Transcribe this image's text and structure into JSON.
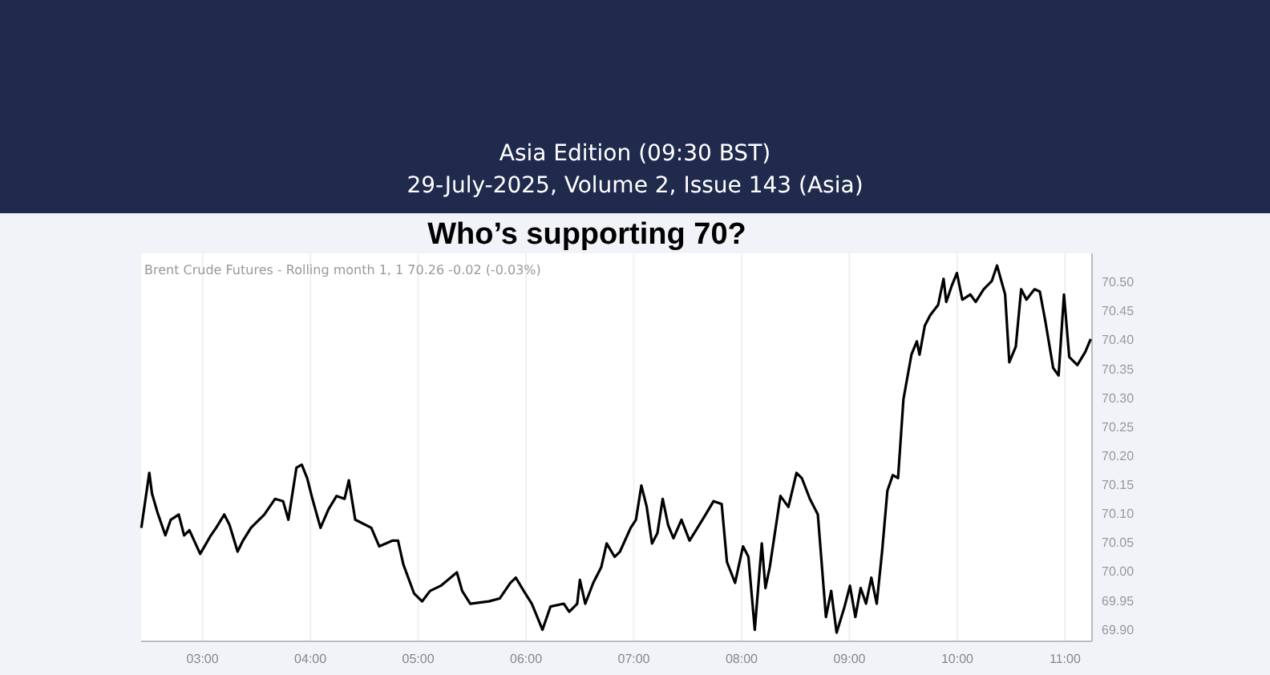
{
  "chart_data": {
    "type": "line",
    "title": "Who’s supporting 70?",
    "annotations": [
      "Asia Edition (09:30 BST)",
      "29-July-2025, Volume 2, Issue 143 (Asia)",
      "Brent Crude Futures - Rolling month 1, 1  70.26  -0.02 (-0.03%)"
    ],
    "series": [
      {
        "color": "#000000",
        "x": [
          2.432,
          2.506,
          2.531,
          2.581,
          2.655,
          2.705,
          2.779,
          2.829,
          2.878,
          2.978,
          3.077,
          3.126,
          3.201,
          3.25,
          3.325,
          3.375,
          3.449,
          3.573,
          3.672,
          3.747,
          3.796,
          3.871,
          3.92,
          3.97,
          4.019,
          4.094,
          4.168,
          4.243,
          4.317,
          4.357,
          4.416,
          4.565,
          4.639,
          4.763,
          4.813,
          4.862,
          4.961,
          5.036,
          5.11,
          5.21,
          5.359,
          5.408,
          5.483,
          5.656,
          5.756,
          5.855,
          5.905,
          5.979,
          6.054,
          6.153,
          6.227,
          6.351,
          6.401,
          6.475,
          6.5,
          6.55,
          6.624,
          6.698,
          6.748,
          6.822,
          6.872,
          6.971,
          7.02,
          7.07,
          7.12,
          7.169,
          7.219,
          7.268,
          7.318,
          7.368,
          7.442,
          7.517,
          7.591,
          7.666,
          7.74,
          7.815,
          7.864,
          7.939,
          8.013,
          8.063,
          8.122,
          8.187,
          8.221,
          8.261,
          8.36,
          8.434,
          8.509,
          8.558,
          8.633,
          8.707,
          8.782,
          8.831,
          8.881,
          8.955,
          9.005,
          9.055,
          9.104,
          9.154,
          9.203,
          9.253,
          9.303,
          9.352,
          9.402,
          9.451,
          9.501,
          9.575,
          9.625,
          9.65,
          9.699,
          9.749,
          9.823,
          9.873,
          9.898,
          9.947,
          9.997,
          10.047,
          10.121,
          10.171,
          10.245,
          10.32,
          10.369,
          10.444,
          10.483,
          10.543,
          10.593,
          10.642,
          10.717,
          10.766,
          10.816,
          10.89,
          10.94,
          10.99,
          11.039,
          11.114,
          11.188,
          11.238
        ],
        "values": [
          70.076,
          70.171,
          70.135,
          70.103,
          70.063,
          70.09,
          70.099,
          70.063,
          70.072,
          70.031,
          70.063,
          70.076,
          70.099,
          70.081,
          70.035,
          70.054,
          70.076,
          70.099,
          70.126,
          70.122,
          70.09,
          70.18,
          70.185,
          70.162,
          70.126,
          70.076,
          70.108,
          70.131,
          70.126,
          70.158,
          70.09,
          70.076,
          70.044,
          70.054,
          70.054,
          70.013,
          69.963,
          69.949,
          69.967,
          69.976,
          69.999,
          69.967,
          69.945,
          69.949,
          69.954,
          69.981,
          69.99,
          69.967,
          69.945,
          69.9,
          69.94,
          69.945,
          69.931,
          69.945,
          69.986,
          69.945,
          69.981,
          70.008,
          70.049,
          70.026,
          70.035,
          70.076,
          70.09,
          70.149,
          70.112,
          70.049,
          70.067,
          70.126,
          70.081,
          70.058,
          70.09,
          70.054,
          70.076,
          70.099,
          70.122,
          70.117,
          70.017,
          69.981,
          70.044,
          70.026,
          69.9,
          70.049,
          69.972,
          70.008,
          70.131,
          70.112,
          70.171,
          70.162,
          70.126,
          70.099,
          69.922,
          69.967,
          69.895,
          69.94,
          69.976,
          69.922,
          69.972,
          69.945,
          69.99,
          69.945,
          70.035,
          70.14,
          70.167,
          70.162,
          70.298,
          70.375,
          70.398,
          70.375,
          70.425,
          70.443,
          70.461,
          70.506,
          70.466,
          70.493,
          70.516,
          70.47,
          70.479,
          70.466,
          70.488,
          70.502,
          70.529,
          70.479,
          70.362,
          70.389,
          70.488,
          70.47,
          70.488,
          70.484,
          70.434,
          70.352,
          70.339,
          70.479,
          70.371,
          70.357,
          70.38,
          70.402
        ]
      }
    ],
    "xlim": [
      2.43,
      11.25
    ],
    "ylim": [
      69.88,
      70.55
    ],
    "xticks": [
      {
        "value": 3,
        "label": "03:00"
      },
      {
        "value": 4,
        "label": "04:00"
      },
      {
        "value": 5,
        "label": "05:00"
      },
      {
        "value": 6,
        "label": "06:00"
      },
      {
        "value": 7,
        "label": "07:00"
      },
      {
        "value": 8,
        "label": "08:00"
      },
      {
        "value": 9,
        "label": "09:00"
      },
      {
        "value": 10,
        "label": "10:00"
      },
      {
        "value": 11,
        "label": "11:00"
      }
    ],
    "yticks": [
      {
        "value": 69.9,
        "label": "69.90"
      },
      {
        "value": 69.95,
        "label": "69.95"
      },
      {
        "value": 70,
        "label": "70.00"
      },
      {
        "value": 70.05,
        "label": "70.05"
      },
      {
        "value": 70.1,
        "label": "70.10"
      },
      {
        "value": 70.15,
        "label": "70.15"
      },
      {
        "value": 70.2,
        "label": "70.20"
      },
      {
        "value": 70.25,
        "label": "70.25"
      },
      {
        "value": 70.3,
        "label": "70.30"
      },
      {
        "value": 70.35,
        "label": "70.35"
      },
      {
        "value": 70.4,
        "label": "70.40"
      },
      {
        "value": 70.45,
        "label": "70.45"
      },
      {
        "value": 70.5,
        "label": "70.50"
      }
    ],
    "grid": "x",
    "marker": "none",
    "line_style": "solid"
  }
}
